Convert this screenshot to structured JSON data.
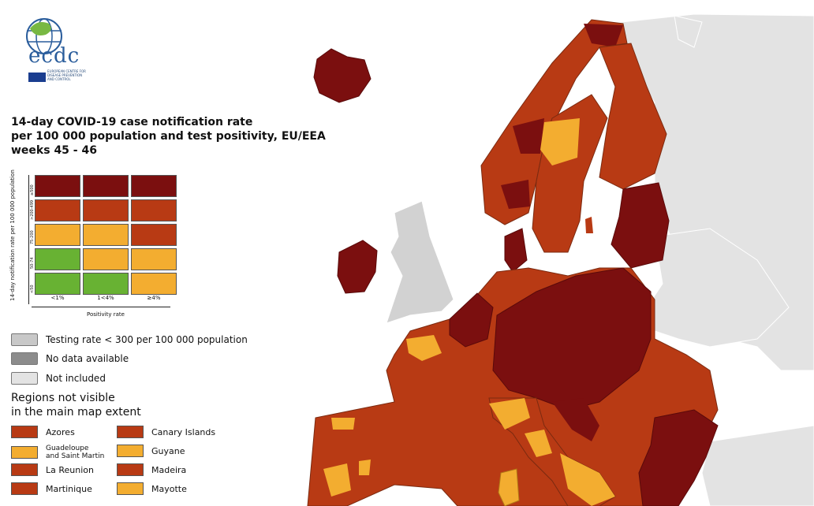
{
  "logo": {
    "name": "ecdc",
    "line1": "EUROPEAN CENTRE FOR",
    "line2": "DISEASE PREVENTION",
    "line3": "AND CONTROL"
  },
  "title": {
    "line1": "14-day COVID-19 case notification rate",
    "line2": "per 100 000 population and test positivity, EU/EEA",
    "line3": "weeks 45 - 46"
  },
  "colors": {
    "dark_red": "#7b0f0f",
    "red": "#b83a14",
    "orange": "#f3ad30",
    "green": "#68b233",
    "grey_testing": "#c8c8c8",
    "grey_nodata": "#8c8c8c",
    "not_included": "#e3e3e3",
    "sea": "#ffffff"
  },
  "matrix": {
    "ylabel": "14-day notification rate per 100 000 population",
    "xlabel": "Positivity rate",
    "rows": [
      "≥500",
      ">200-499",
      "75-200",
      "50-74",
      "<50"
    ],
    "cols": [
      "<1%",
      "1<4%",
      "≥4%"
    ],
    "cells": [
      [
        "dark_red",
        "dark_red",
        "dark_red"
      ],
      [
        "red",
        "red",
        "red"
      ],
      [
        "orange",
        "orange",
        "red"
      ],
      [
        "green",
        "orange",
        "orange"
      ],
      [
        "green",
        "green",
        "orange"
      ]
    ]
  },
  "legend": {
    "testing": "Testing rate < 300 per 100 000 population",
    "nodata": "No data available",
    "notincluded": "Not included"
  },
  "regions": {
    "title1": "Regions not visible",
    "title2": "in the main map extent",
    "items": [
      {
        "label": "Azores",
        "color": "red"
      },
      {
        "label": "Canary Islands",
        "color": "red"
      },
      {
        "label": "Guadeloupe\nand Saint Martin",
        "color": "orange"
      },
      {
        "label": "Guyane",
        "color": "orange"
      },
      {
        "label": "La Reunion",
        "color": "red"
      },
      {
        "label": "Madeira",
        "color": "red"
      },
      {
        "label": "Martinique",
        "color": "red"
      },
      {
        "label": "Mayotte",
        "color": "orange"
      }
    ]
  }
}
